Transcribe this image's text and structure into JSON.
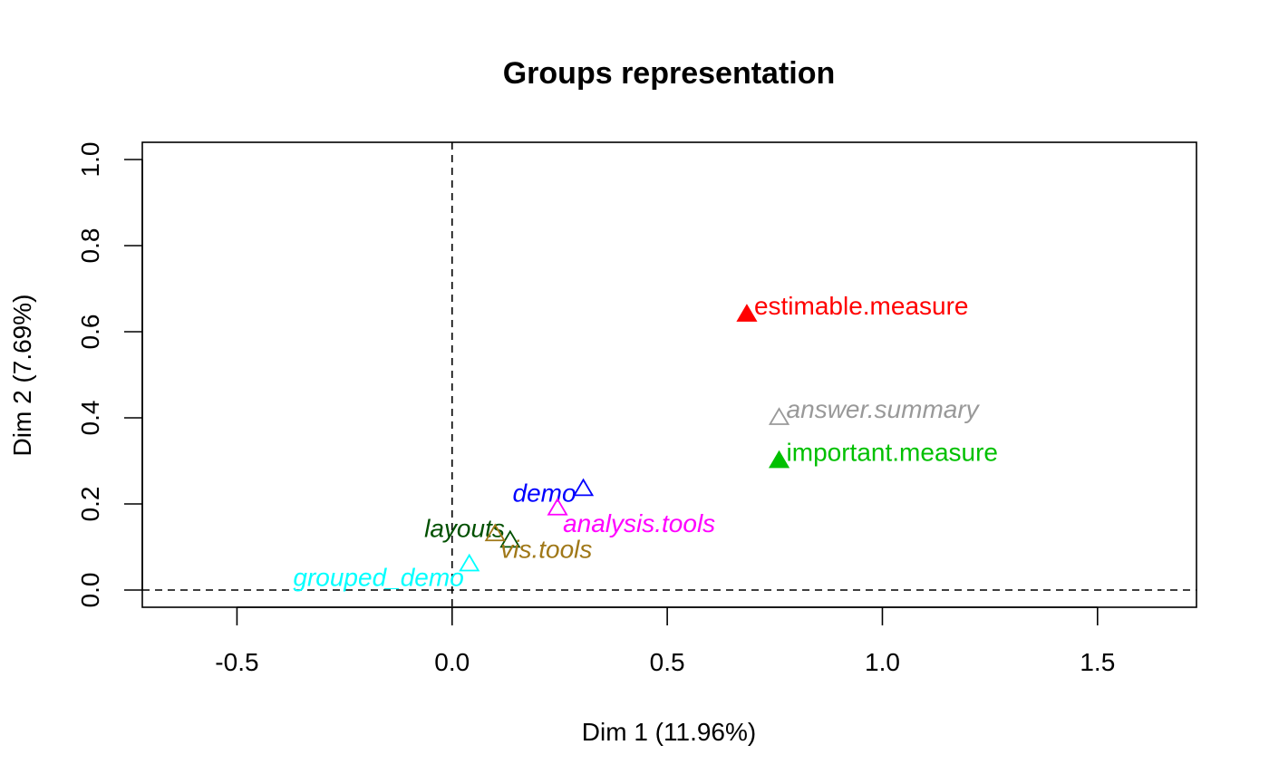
{
  "chart_data": {
    "type": "scatter",
    "title": "Groups representation",
    "xlabel": "Dim 1 (11.96%)",
    "ylabel": "Dim 2 (7.69%)",
    "xlim": [
      -0.72,
      1.73
    ],
    "ylim": [
      -0.04,
      1.04
    ],
    "xticks": [
      -0.5,
      0.0,
      0.5,
      1.0,
      1.5
    ],
    "xtick_labels": [
      "-0.5",
      "0.0",
      "0.5",
      "1.0",
      "1.5"
    ],
    "yticks": [
      0.0,
      0.2,
      0.4,
      0.6,
      0.8,
      1.0
    ],
    "ytick_labels": [
      "0.0",
      "0.2",
      "0.4",
      "0.6",
      "0.8",
      "1.0"
    ],
    "grid": false,
    "reference_lines": [
      {
        "orientation": "vertical",
        "value": 0,
        "style": "dashed"
      },
      {
        "orientation": "horizontal",
        "value": 0,
        "style": "dashed"
      }
    ],
    "points": [
      {
        "label": "estimable.measure",
        "x": 0.685,
        "y": 0.64,
        "color": "#ff0000",
        "marker": "filled-triangle",
        "italic": false,
        "label_pos": "right"
      },
      {
        "label": "answer.summary",
        "x": 0.76,
        "y": 0.4,
        "color": "#999999",
        "marker": "open-triangle",
        "italic": true,
        "label_pos": "right"
      },
      {
        "label": "important.measure",
        "x": 0.76,
        "y": 0.3,
        "color": "#00c000",
        "marker": "filled-triangle",
        "italic": false,
        "label_pos": "right"
      },
      {
        "label": "demo",
        "x": 0.305,
        "y": 0.235,
        "color": "#0000ff",
        "marker": "open-triangle",
        "italic": true,
        "label_pos": "left"
      },
      {
        "label": "analysis.tools",
        "x": 0.245,
        "y": 0.19,
        "color": "#ff00ff",
        "marker": "open-triangle",
        "italic": true,
        "label_pos": "below-right"
      },
      {
        "label": "layouts",
        "x": 0.135,
        "y": 0.115,
        "color": "#005000",
        "marker": "open-triangle",
        "italic": true,
        "label_pos": "above-left"
      },
      {
        "label": "vis.tools",
        "x": 0.1,
        "y": 0.13,
        "color": "#a07818",
        "marker": "open-triangle",
        "italic": true,
        "label_pos": "below-right"
      },
      {
        "label": "grouped_demo",
        "x": 0.04,
        "y": 0.06,
        "color": "#00ffff",
        "marker": "open-triangle",
        "italic": true,
        "label_pos": "below-left"
      }
    ]
  }
}
